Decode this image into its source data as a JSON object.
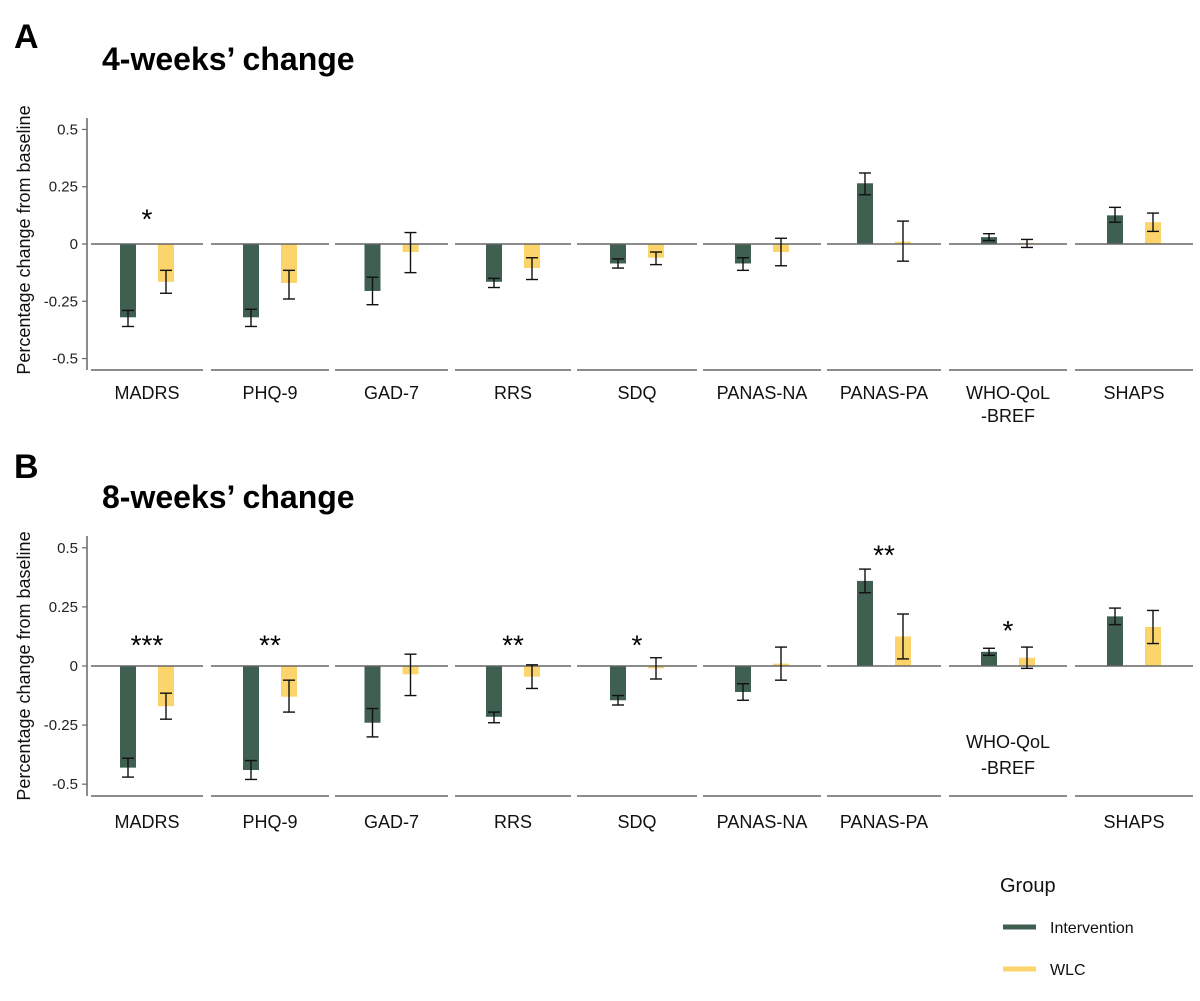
{
  "chart_data": [
    {
      "panel": "A",
      "title": "4-weeks’ change",
      "type": "bar",
      "ylabel": "Percentage change from baseline",
      "ylim": [
        -0.55,
        0.55
      ],
      "yticks": [
        0.5,
        0.25,
        0,
        -0.25,
        -0.5
      ],
      "ytick_labels": [
        "0.5",
        "0.25",
        "0",
        "-0.25",
        "-0.5"
      ],
      "categories": [
        {
          "label": "MADRS",
          "label_lines": [
            "MADRS"
          ],
          "label_pos": "bottom",
          "sig": "*",
          "sig_y": 0.12
        },
        {
          "label": "PHQ-9",
          "label_lines": [
            "PHQ-9"
          ],
          "label_pos": "bottom",
          "sig": "",
          "sig_y": 0
        },
        {
          "label": "GAD-7",
          "label_lines": [
            "GAD-7"
          ],
          "label_pos": "bottom",
          "sig": "",
          "sig_y": 0
        },
        {
          "label": "RRS",
          "label_lines": [
            "RRS"
          ],
          "label_pos": "bottom",
          "sig": "",
          "sig_y": 0
        },
        {
          "label": "SDQ",
          "label_lines": [
            "SDQ"
          ],
          "label_pos": "bottom",
          "sig": "",
          "sig_y": 0
        },
        {
          "label": "PANAS-NA",
          "label_lines": [
            "PANAS-NA"
          ],
          "label_pos": "bottom",
          "sig": "",
          "sig_y": 0
        },
        {
          "label": "PANAS-PA",
          "label_lines": [
            "PANAS-PA"
          ],
          "label_pos": "bottom",
          "sig": "",
          "sig_y": 0
        },
        {
          "label": "WHO-QoL -BREF",
          "label_lines": [
            "WHO-QoL",
            "-BREF"
          ],
          "label_pos": "bottom",
          "sig": "",
          "sig_y": 0
        },
        {
          "label": "SHAPS",
          "label_lines": [
            "SHAPS"
          ],
          "label_pos": "bottom",
          "sig": "",
          "sig_y": 0
        }
      ],
      "series": [
        {
          "name": "Intervention",
          "values": [
            -0.32,
            -0.32,
            -0.205,
            -0.165,
            -0.085,
            -0.085,
            0.265,
            0.03,
            0.125
          ],
          "err_low": [
            -0.36,
            -0.36,
            -0.265,
            -0.19,
            -0.105,
            -0.115,
            0.215,
            0.015,
            0.095
          ],
          "err_high": [
            -0.29,
            -0.285,
            -0.145,
            -0.15,
            -0.065,
            -0.06,
            0.31,
            0.045,
            0.16
          ]
        },
        {
          "name": "WLC",
          "values": [
            -0.165,
            -0.17,
            -0.035,
            -0.105,
            -0.06,
            -0.035,
            0.01,
            0.005,
            0.095
          ],
          "err_low": [
            -0.215,
            -0.24,
            -0.125,
            -0.155,
            -0.09,
            -0.095,
            -0.075,
            -0.015,
            0.055
          ],
          "err_high": [
            -0.115,
            -0.115,
            0.05,
            -0.06,
            -0.035,
            0.025,
            0.1,
            0.02,
            0.135
          ]
        }
      ]
    },
    {
      "panel": "B",
      "title": "8-weeks’ change",
      "type": "bar",
      "ylabel": "Percentage change from baseline",
      "ylim": [
        -0.55,
        0.55
      ],
      "yticks": [
        0.5,
        0.25,
        0,
        -0.25,
        -0.5
      ],
      "ytick_labels": [
        "0.5",
        "0.25",
        "0",
        "-0.25",
        "-0.5"
      ],
      "categories": [
        {
          "label": "MADRS",
          "label_lines": [
            "MADRS"
          ],
          "label_pos": "bottom",
          "sig": "***",
          "sig_y": 0.1
        },
        {
          "label": "PHQ-9",
          "label_lines": [
            "PHQ-9"
          ],
          "label_pos": "bottom",
          "sig": "**",
          "sig_y": 0.1
        },
        {
          "label": "GAD-7",
          "label_lines": [
            "GAD-7"
          ],
          "label_pos": "bottom",
          "sig": "",
          "sig_y": 0
        },
        {
          "label": "RRS",
          "label_lines": [
            "RRS"
          ],
          "label_pos": "bottom",
          "sig": "**",
          "sig_y": 0.1
        },
        {
          "label": "SDQ",
          "label_lines": [
            "SDQ"
          ],
          "label_pos": "bottom",
          "sig": "*",
          "sig_y": 0.1
        },
        {
          "label": "PANAS-NA",
          "label_lines": [
            "PANAS-NA"
          ],
          "label_pos": "bottom",
          "sig": "",
          "sig_y": 0
        },
        {
          "label": "PANAS-PA",
          "label_lines": [
            "PANAS-PA"
          ],
          "label_pos": "bottom",
          "sig": "**",
          "sig_y": 0.48
        },
        {
          "label": "WHO-QoL -BREF",
          "label_lines": [
            "WHO-QoL",
            "-BREF"
          ],
          "label_pos": "inside",
          "sig": "*",
          "sig_y": 0.16
        },
        {
          "label": "SHAPS",
          "label_lines": [
            "SHAPS"
          ],
          "label_pos": "bottom",
          "sig": "",
          "sig_y": 0
        }
      ],
      "series": [
        {
          "name": "Intervention",
          "values": [
            -0.43,
            -0.44,
            -0.24,
            -0.215,
            -0.145,
            -0.11,
            0.36,
            0.06,
            0.21
          ],
          "err_low": [
            -0.47,
            -0.48,
            -0.3,
            -0.24,
            -0.165,
            -0.145,
            0.31,
            0.045,
            0.175
          ],
          "err_high": [
            -0.39,
            -0.4,
            -0.18,
            -0.195,
            -0.125,
            -0.075,
            0.41,
            0.075,
            0.245
          ]
        },
        {
          "name": "WLC",
          "values": [
            -0.17,
            -0.13,
            -0.035,
            -0.045,
            -0.01,
            0.01,
            0.125,
            0.035,
            0.165
          ],
          "err_low": [
            -0.225,
            -0.195,
            -0.125,
            -0.095,
            -0.055,
            -0.06,
            0.03,
            -0.01,
            0.095
          ],
          "err_high": [
            -0.115,
            -0.06,
            0.05,
            0.005,
            0.035,
            0.08,
            0.22,
            0.08,
            0.235
          ]
        }
      ]
    }
  ],
  "legend": {
    "title": "Group",
    "items": [
      {
        "label": "Intervention",
        "color": "#3f5f50"
      },
      {
        "label": "WLC",
        "color": "#fbd46b"
      }
    ]
  },
  "colors": {
    "intervention": "#3f5f50",
    "wlc": "#fbd46b",
    "axis": "#666666"
  }
}
